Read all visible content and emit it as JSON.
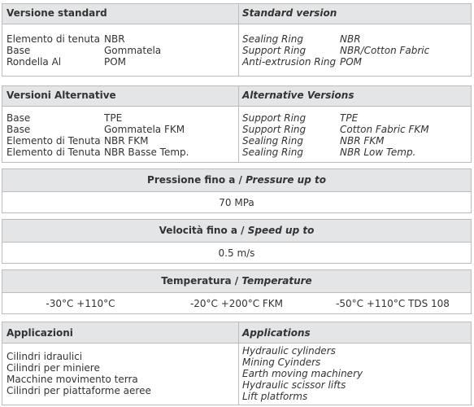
{
  "standard": {
    "title_it": "Versione standard",
    "title_en": "Standard version",
    "rows_it": [
      [
        "Elemento di tenuta",
        "NBR"
      ],
      [
        "Base",
        "Gommatela"
      ],
      [
        "Rondella Al",
        "POM"
      ]
    ],
    "rows_en": [
      [
        "Sealing Ring",
        "NBR"
      ],
      [
        "Support Ring",
        "NBR/Cotton Fabric"
      ],
      [
        "Anti-extrusion Ring",
        "POM"
      ]
    ]
  },
  "alternative": {
    "title_it": "Versioni Alternative",
    "title_en": "Alternative Versions",
    "rows_it": [
      [
        "Base",
        "TPE"
      ],
      [
        "Base",
        "Gommatela FKM"
      ],
      [
        "Elemento di Tenuta",
        "NBR FKM"
      ],
      [
        "Elemento di Tenuta",
        "NBR Basse Temp."
      ]
    ],
    "rows_en": [
      [
        "Support Ring",
        "TPE"
      ],
      [
        "Support Ring",
        "Cotton Fabric FKM"
      ],
      [
        "Sealing Ring",
        "NBR FKM"
      ],
      [
        "Sealing Ring",
        "NBR Low Temp."
      ]
    ]
  },
  "pressure": {
    "title_it": "Pressione fino a /",
    "title_en": "Pressure up to",
    "value": "70 MPa"
  },
  "speed": {
    "title_it": "Velocità fino a /",
    "title_en": "Speed up to",
    "value": "0.5 m/s"
  },
  "temperature": {
    "title_it": "Temperatura /",
    "title_en": "Temperature",
    "values": [
      "-30°C +110°C",
      "-20°C +200°C FKM",
      "-50°C +110°C TDS 108"
    ]
  },
  "applications": {
    "title_it": "Applicazioni",
    "title_en": "Applications",
    "items_it": [
      "Cilindri idraulici",
      "Cilindri per miniere",
      "Macchine movimento terra",
      "Cilindri per piattaforme aeree"
    ],
    "items_en": [
      "Hydraulic cylinders",
      "Mining Cyinders",
      "Earth moving machinery",
      "Hydraulic scissor lifts",
      "Lift platforms"
    ]
  }
}
